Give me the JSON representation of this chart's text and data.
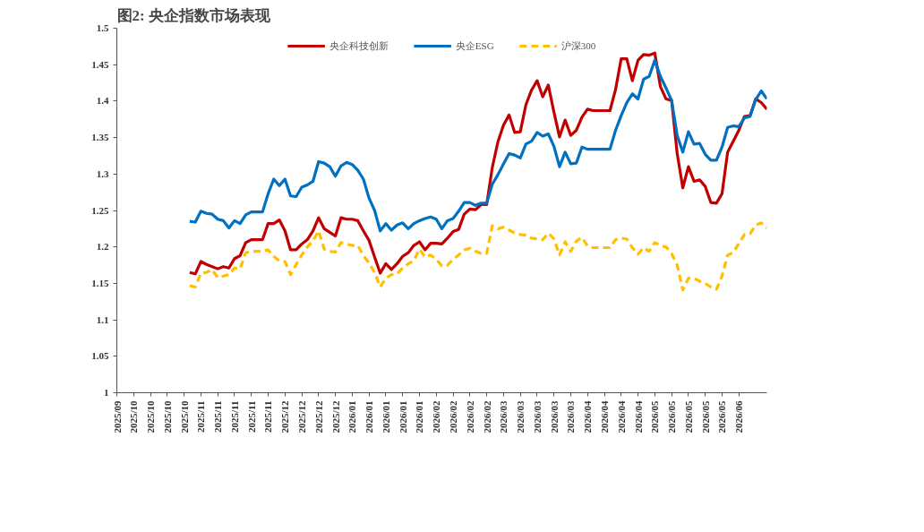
{
  "chart_data": {
    "type": "line",
    "title": "图2: 央企指数市场表现",
    "categories": [
      "2025/09",
      null,
      null,
      "2025/10",
      null,
      null,
      "2025/10",
      null,
      null,
      "2025/10",
      null,
      null,
      "2025/10",
      null,
      null,
      "2025/11",
      null,
      null,
      "2025/11",
      null,
      null,
      "2025/11",
      null,
      null,
      "2025/11",
      null,
      null,
      "2025/11",
      null,
      null,
      "2025/12",
      null,
      null,
      "2025/12",
      null,
      null,
      "2025/12",
      null,
      null,
      "2025/12",
      null,
      null,
      "2026/01",
      null,
      null,
      "2026/01",
      null,
      null,
      "2026/01",
      null,
      null,
      "2026/01",
      null,
      null,
      "2026/01",
      null,
      null,
      "2026/02",
      null,
      null,
      "2026/02",
      null,
      null,
      "2026/02",
      null,
      null,
      "2026/02",
      null,
      null,
      "2026/03",
      null,
      null,
      "2026/03",
      null,
      null,
      "2026/03",
      null,
      null,
      "2026/03",
      null,
      null,
      "2026/03",
      null,
      null,
      "2026/04",
      null,
      null,
      "2026/04",
      null,
      null,
      "2026/04",
      null,
      null,
      "2026/04",
      null,
      null,
      "2026/05",
      null,
      null,
      "2026/05",
      null,
      null,
      "2026/05",
      null,
      null,
      "2026/05",
      null,
      null,
      "2026/05",
      null,
      null,
      "2026/06",
      null,
      null,
      null,
      null,
      null
    ],
    "ylim": [
      1,
      1.5
    ],
    "yticks": [
      1,
      1.05,
      1.1,
      1.15,
      1.2,
      1.25,
      1.3,
      1.35,
      1.4,
      1.45,
      1.5
    ],
    "legend": "top",
    "series": [
      {
        "name": "央企科技创新",
        "color": "#c00000",
        "line_style": "solid",
        "values": [
          null,
          null,
          null,
          null,
          null,
          null,
          null,
          null,
          null,
          null,
          null,
          null,
          null,
          1.165,
          1.163,
          1.18,
          1.176,
          1.173,
          1.17,
          1.173,
          1.171,
          1.184,
          1.188,
          1.206,
          1.21,
          1.21,
          1.21,
          1.232,
          1.232,
          1.237,
          1.222,
          1.196,
          1.196,
          1.204,
          1.21,
          1.222,
          1.24,
          1.225,
          1.22,
          1.215,
          1.24,
          1.238,
          1.238,
          1.236,
          1.222,
          1.209,
          1.186,
          1.164,
          1.177,
          1.169,
          1.177,
          1.187,
          1.192,
          1.202,
          1.207,
          1.196,
          1.205,
          1.205,
          1.204,
          1.212,
          1.221,
          1.224,
          1.245,
          1.252,
          1.251,
          1.258,
          1.258,
          1.309,
          1.344,
          1.367,
          1.381,
          1.357,
          1.358,
          1.395,
          1.415,
          1.428,
          1.406,
          1.422,
          1.385,
          1.351,
          1.374,
          1.353,
          1.36,
          1.378,
          1.389,
          1.387,
          1.387,
          1.387,
          1.387,
          1.416,
          1.458,
          1.458,
          1.428,
          1.456,
          1.464,
          1.463,
          1.466,
          1.42,
          1.403,
          1.401,
          1.328,
          1.281,
          1.31,
          1.29,
          1.292,
          1.283,
          1.261,
          1.26,
          1.273,
          1.33,
          1.345,
          1.36,
          1.379,
          1.38,
          1.403,
          1.398,
          1.389
        ]
      },
      {
        "name": "央企ESG",
        "color": "#0070c0",
        "line_style": "solid",
        "values": [
          null,
          null,
          null,
          null,
          null,
          null,
          null,
          null,
          null,
          null,
          null,
          null,
          null,
          1.235,
          1.234,
          1.249,
          1.246,
          1.245,
          1.238,
          1.236,
          1.226,
          1.236,
          1.232,
          1.244,
          1.248,
          1.248,
          1.248,
          1.273,
          1.293,
          1.284,
          1.293,
          1.27,
          1.269,
          1.282,
          1.285,
          1.29,
          1.317,
          1.315,
          1.31,
          1.297,
          1.311,
          1.316,
          1.313,
          1.305,
          1.293,
          1.267,
          1.25,
          1.222,
          1.232,
          1.223,
          1.23,
          1.233,
          1.225,
          1.232,
          1.236,
          1.239,
          1.241,
          1.238,
          1.225,
          1.236,
          1.239,
          1.249,
          1.261,
          1.261,
          1.257,
          1.26,
          1.26,
          1.286,
          1.299,
          1.314,
          1.328,
          1.326,
          1.322,
          1.341,
          1.345,
          1.357,
          1.352,
          1.355,
          1.338,
          1.31,
          1.33,
          1.314,
          1.315,
          1.337,
          1.334,
          1.334,
          1.334,
          1.334,
          1.334,
          1.36,
          1.38,
          1.398,
          1.41,
          1.403,
          1.43,
          1.434,
          1.456,
          1.434,
          1.418,
          1.401,
          1.353,
          1.33,
          1.358,
          1.341,
          1.342,
          1.327,
          1.319,
          1.319,
          1.337,
          1.364,
          1.366,
          1.365,
          1.377,
          1.379,
          1.402,
          1.414,
          1.403
        ]
      },
      {
        "name": "沪深300",
        "color": "#ffc000",
        "line_style": "dashed",
        "values": [
          null,
          null,
          null,
          null,
          null,
          null,
          null,
          null,
          null,
          null,
          null,
          null,
          null,
          1.147,
          1.145,
          1.164,
          1.165,
          1.169,
          1.158,
          1.16,
          1.162,
          1.171,
          1.17,
          1.192,
          1.194,
          1.194,
          1.194,
          1.196,
          1.187,
          1.181,
          1.18,
          1.162,
          1.176,
          1.189,
          1.2,
          1.208,
          1.222,
          1.197,
          1.194,
          1.193,
          1.206,
          1.204,
          1.202,
          1.202,
          1.188,
          1.178,
          1.165,
          1.145,
          1.157,
          1.162,
          1.163,
          1.171,
          1.177,
          1.181,
          1.197,
          1.186,
          1.189,
          1.183,
          1.174,
          1.175,
          1.183,
          1.189,
          1.196,
          1.198,
          1.194,
          1.191,
          1.191,
          1.229,
          1.225,
          1.227,
          1.223,
          1.219,
          1.217,
          1.216,
          1.212,
          1.211,
          1.21,
          1.219,
          1.211,
          1.189,
          1.207,
          1.194,
          1.208,
          1.213,
          1.201,
          1.199,
          1.199,
          1.199,
          1.199,
          1.21,
          1.212,
          1.211,
          1.199,
          1.19,
          1.199,
          1.194,
          1.206,
          1.202,
          1.2,
          1.191,
          1.175,
          1.141,
          1.157,
          1.157,
          1.153,
          1.15,
          1.145,
          1.142,
          1.16,
          1.189,
          1.192,
          1.205,
          1.217,
          1.218,
          1.23,
          1.233,
          1.226
        ]
      }
    ]
  }
}
